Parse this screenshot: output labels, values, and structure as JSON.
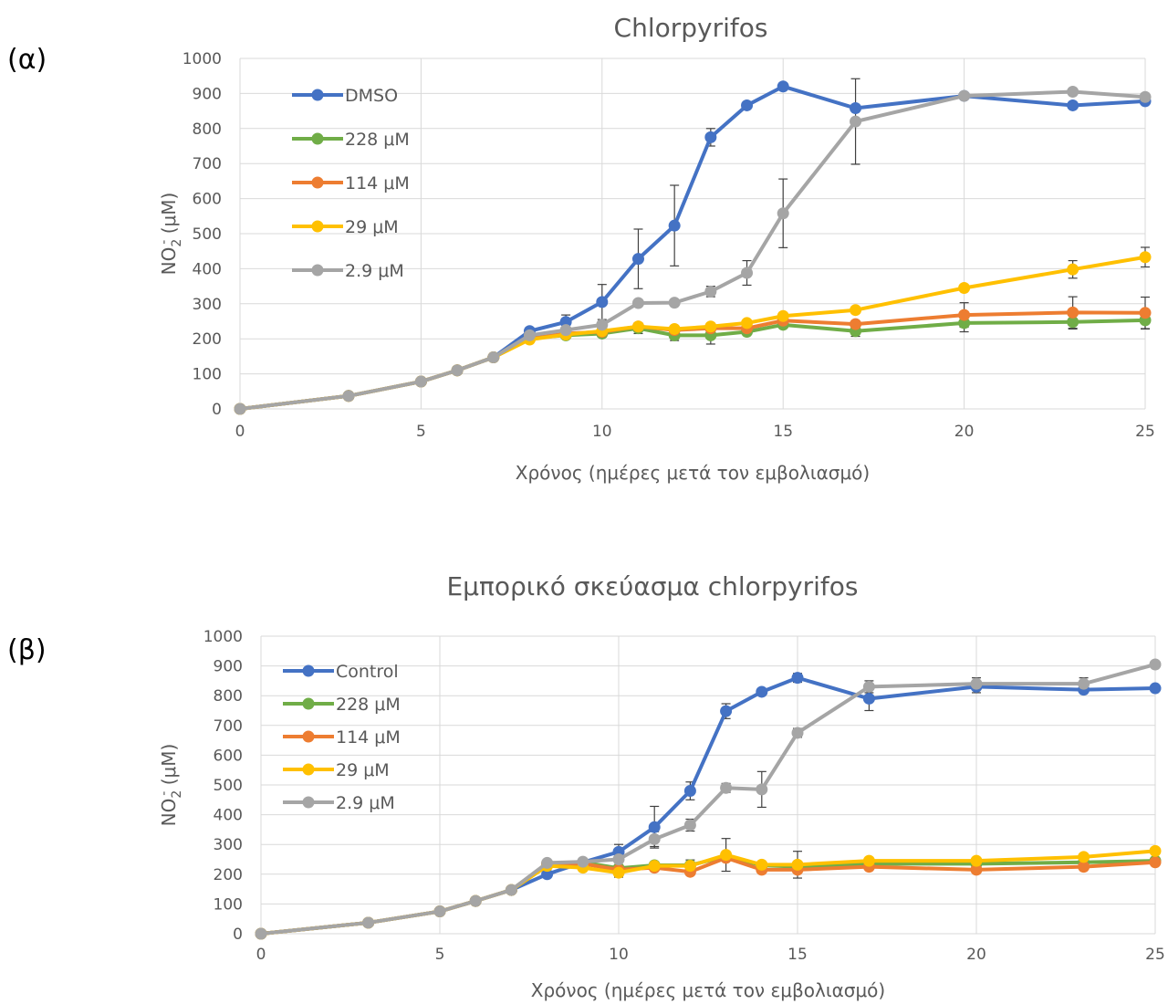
{
  "panels": [
    {
      "tag": "(α)"
    },
    {
      "tag": "(β)"
    }
  ],
  "chart_data": [
    {
      "type": "line",
      "title": "Chlorpyrifos",
      "xlabel": "Χρόνος (ημέρες μετά τον εμβολιασμό)",
      "ylabel_main": "NO",
      "ylabel_sub": "2",
      "ylabel_sup": "-",
      "ylabel_unit": " (μM)",
      "xlim": [
        0,
        25
      ],
      "ylim": [
        0,
        1000
      ],
      "xticks": [
        0,
        5,
        10,
        15,
        20,
        25
      ],
      "yticks": [
        0,
        100,
        200,
        300,
        400,
        500,
        600,
        700,
        800,
        900,
        1000
      ],
      "grid": true,
      "legend_position": "top-left",
      "x": [
        0,
        3,
        5,
        6,
        7,
        8,
        9,
        10,
        11,
        12,
        13,
        14,
        15,
        17,
        20,
        23,
        25
      ],
      "series": [
        {
          "name": "DMSO",
          "color": "#4472C4",
          "values": [
            0,
            37,
            78,
            110,
            147,
            222,
            248,
            305,
            428,
            523,
            775,
            866,
            920,
            858,
            893,
            866,
            878
          ],
          "errors": [
            0,
            0,
            0,
            0,
            0,
            0,
            20,
            50,
            85,
            115,
            25,
            0,
            0,
            0,
            0,
            0,
            0
          ]
        },
        {
          "name": "228 μM",
          "color": "#70AD47",
          "values": [
            0,
            37,
            78,
            110,
            147,
            202,
            210,
            215,
            230,
            210,
            210,
            220,
            240,
            222,
            245,
            248,
            253
          ],
          "errors": [
            0,
            0,
            0,
            0,
            0,
            0,
            0,
            10,
            15,
            15,
            25,
            0,
            0,
            15,
            25,
            20,
            25
          ]
        },
        {
          "name": "114 μM",
          "color": "#ED7D31",
          "values": [
            0,
            37,
            78,
            110,
            147,
            200,
            215,
            220,
            235,
            225,
            230,
            230,
            252,
            242,
            268,
            275,
            274
          ],
          "errors": [
            0,
            0,
            0,
            0,
            0,
            0,
            0,
            0,
            0,
            0,
            0,
            0,
            0,
            0,
            35,
            45,
            45
          ]
        },
        {
          "name": "29 μM",
          "color": "#FFC000",
          "values": [
            0,
            37,
            78,
            110,
            147,
            198,
            212,
            222,
            235,
            228,
            235,
            245,
            265,
            282,
            345,
            398,
            433
          ],
          "errors": [
            0,
            0,
            0,
            0,
            0,
            0,
            0,
            0,
            0,
            0,
            0,
            0,
            0,
            0,
            0,
            25,
            28
          ]
        },
        {
          "name": "2.9 μM",
          "color": "#A5A5A5",
          "values": [
            0,
            37,
            78,
            110,
            147,
            210,
            225,
            240,
            302,
            303,
            335,
            388,
            558,
            820,
            893,
            905,
            890
          ],
          "errors": [
            0,
            0,
            0,
            0,
            0,
            0,
            0,
            0,
            0,
            0,
            15,
            35,
            98,
            122,
            0,
            0,
            0
          ]
        }
      ]
    },
    {
      "type": "line",
      "title": "Εμπορικό σκεύασμα chlorpyrifos",
      "xlabel": "Χρόνος (ημέρες μετά τον εμβολιασμό)",
      "ylabel_main": "NO",
      "ylabel_sub": "2",
      "ylabel_sup": "-",
      "ylabel_unit": " (μM)",
      "xlim": [
        0,
        25
      ],
      "ylim": [
        0,
        1000
      ],
      "xticks": [
        0,
        5,
        10,
        15,
        20,
        25
      ],
      "yticks": [
        0,
        100,
        200,
        300,
        400,
        500,
        600,
        700,
        800,
        900,
        1000
      ],
      "grid": true,
      "legend_position": "top-left",
      "x": [
        0,
        3,
        5,
        6,
        7,
        8,
        9,
        10,
        11,
        12,
        13,
        14,
        15,
        17,
        20,
        23,
        25
      ],
      "series": [
        {
          "name": "Control",
          "color": "#4472C4",
          "values": [
            0,
            37,
            75,
            110,
            147,
            200,
            240,
            275,
            358,
            480,
            748,
            813,
            860,
            790,
            830,
            820,
            825
          ],
          "errors": [
            0,
            0,
            0,
            0,
            0,
            0,
            0,
            25,
            70,
            30,
            25,
            0,
            15,
            40,
            20,
            0,
            0
          ]
        },
        {
          "name": "228 μM",
          "color": "#70AD47",
          "values": [
            0,
            37,
            75,
            110,
            147,
            235,
            240,
            220,
            230,
            230,
            260,
            230,
            225,
            235,
            235,
            240,
            245
          ],
          "errors": [
            0,
            0,
            0,
            0,
            0,
            0,
            0,
            0,
            0,
            0,
            0,
            0,
            0,
            0,
            0,
            0,
            0
          ]
        },
        {
          "name": "114 μM",
          "color": "#ED7D31",
          "values": [
            0,
            37,
            75,
            110,
            147,
            235,
            235,
            215,
            222,
            208,
            255,
            215,
            215,
            225,
            215,
            225,
            240
          ],
          "errors": [
            0,
            0,
            0,
            0,
            0,
            0,
            0,
            0,
            0,
            0,
            0,
            0,
            0,
            0,
            0,
            0,
            0
          ]
        },
        {
          "name": "29 μM",
          "color": "#FFC000",
          "values": [
            0,
            37,
            75,
            110,
            147,
            228,
            222,
            205,
            228,
            228,
            265,
            232,
            232,
            245,
            245,
            258,
            278
          ],
          "errors": [
            0,
            0,
            0,
            0,
            0,
            0,
            0,
            15,
            0,
            20,
            55,
            0,
            45,
            0,
            0,
            0,
            0
          ]
        },
        {
          "name": "2.9 μM",
          "color": "#A5A5A5",
          "values": [
            0,
            37,
            75,
            110,
            147,
            238,
            242,
            250,
            318,
            365,
            490,
            485,
            675,
            830,
            840,
            840,
            905
          ],
          "errors": [
            0,
            0,
            0,
            0,
            0,
            0,
            0,
            0,
            25,
            20,
            15,
            60,
            15,
            20,
            20,
            20,
            0
          ]
        }
      ]
    }
  ]
}
